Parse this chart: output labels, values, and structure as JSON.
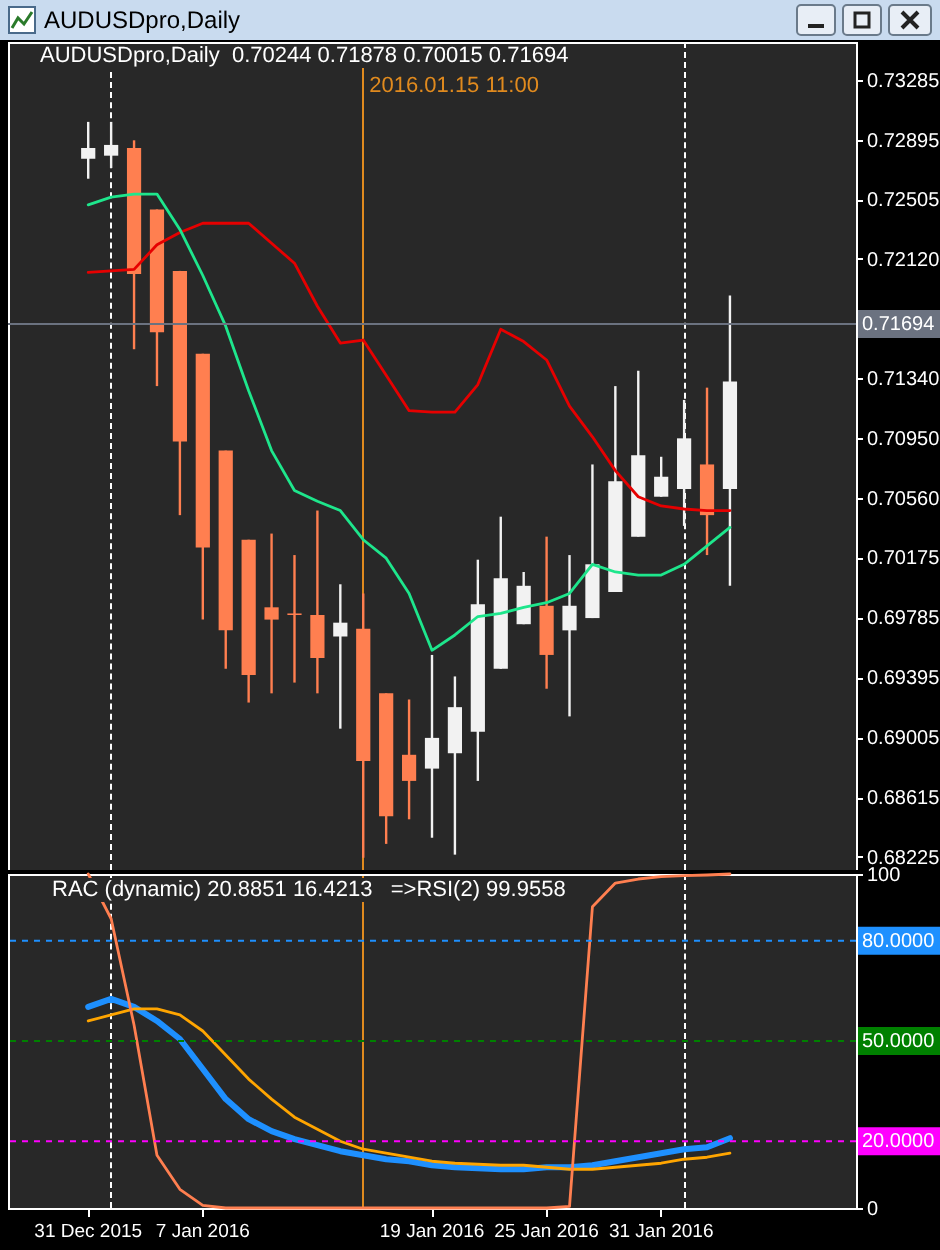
{
  "chart_data": [
    {
      "type": "candlestick",
      "title": "AUDUSDpro,Daily",
      "subtitle": "AUDUSDpro,Daily  0.70244 0.71878 0.70015 0.71694",
      "categories": [
        null,
        null,
        null,
        null,
        null,
        null,
        null,
        null,
        null,
        null,
        null,
        null,
        null,
        null,
        null,
        null,
        null,
        null,
        null,
        null,
        null,
        null,
        null,
        null,
        null,
        null,
        null,
        null,
        null
      ],
      "ohlc": [
        [
          0.7277,
          0.7301,
          0.7264,
          0.7284
        ],
        [
          0.7279,
          0.7301,
          0.7271,
          0.7286
        ],
        [
          0.7284,
          0.7289,
          0.7153,
          0.7202
        ],
        [
          0.7244,
          0.7244,
          0.7129,
          0.7164
        ],
        [
          0.7204,
          0.7204,
          0.7045,
          0.7093
        ],
        [
          0.715,
          0.715,
          0.6977,
          0.7024
        ],
        [
          0.7087,
          0.7087,
          0.6945,
          0.697
        ],
        [
          0.7029,
          0.7029,
          0.6923,
          0.6941
        ],
        [
          0.6985,
          0.7033,
          0.6929,
          0.6977
        ],
        [
          0.6981,
          0.7019,
          0.6936,
          0.698
        ],
        [
          0.698,
          0.7048,
          0.6929,
          0.6952
        ],
        [
          0.6966,
          0.7,
          0.6906,
          0.6975
        ],
        [
          0.6971,
          0.6994,
          0.6822,
          0.6885
        ],
        [
          0.6929,
          0.6929,
          0.6831,
          0.6849
        ],
        [
          0.6889,
          0.6925,
          0.6847,
          0.6872
        ],
        [
          0.688,
          0.6954,
          0.6835,
          0.69
        ],
        [
          0.689,
          0.694,
          0.6824,
          0.692
        ],
        [
          0.6904,
          0.7016,
          0.6872,
          0.6987
        ],
        [
          0.6945,
          0.7044,
          0.6945,
          0.7004
        ],
        [
          0.6974,
          0.7008,
          0.6974,
          0.6999
        ],
        [
          0.6986,
          0.7031,
          0.6932,
          0.6954
        ],
        [
          0.697,
          0.7019,
          0.6914,
          0.6986
        ],
        [
          0.6978,
          0.7078,
          0.6978,
          0.7013
        ],
        [
          0.6995,
          0.7129,
          0.6995,
          0.7067
        ],
        [
          0.7031,
          0.7139,
          0.7031,
          0.7084
        ],
        [
          0.7057,
          0.7083,
          0.7057,
          0.707
        ],
        [
          0.7062,
          0.712,
          0.7038,
          0.7095
        ],
        [
          0.7078,
          0.7128,
          0.7019,
          0.7045
        ],
        [
          0.7062,
          0.7188,
          0.6999,
          0.7132
        ]
      ],
      "colors": [
        "#f2f2f2",
        "#f2f2f2",
        "#ff7f50",
        "#ff7f50",
        "#ff7f50",
        "#ff7f50",
        "#ff7f50",
        "#ff7f50",
        "#ff7f50",
        "#ff7f50",
        "#ff7f50",
        "#f2f2f2",
        "#ff7f50",
        "#ff7f50",
        "#ff7f50",
        "#f2f2f2",
        "#f2f2f2",
        "#f2f2f2",
        "#f2f2f2",
        "#f2f2f2",
        "#ff7f50",
        "#f2f2f2",
        "#f2f2f2",
        "#f2f2f2",
        "#f2f2f2",
        "#f2f2f2",
        "#f2f2f2",
        "#ff7f50",
        "#f2f2f2"
      ],
      "series": [
        {
          "type": "line",
          "color": "#e60000",
          "values": [
            0.7203,
            0.7204,
            0.7205,
            0.7221,
            0.7229,
            0.7235,
            0.7235,
            0.7235,
            0.7222,
            0.7209,
            0.7181,
            0.7157,
            0.7159,
            0.7136,
            0.7113,
            0.7112,
            0.7112,
            0.713,
            0.7166,
            0.7158,
            0.7146,
            0.7116,
            0.7096,
            0.7074,
            0.7057,
            0.7051,
            0.7049,
            0.7048,
            0.7048
          ]
        },
        {
          "type": "line",
          "color": "#1ee68c",
          "values": [
            0.7247,
            0.7252,
            0.7254,
            0.7254,
            0.7231,
            0.7201,
            0.7168,
            0.7126,
            0.7087,
            0.7061,
            0.7054,
            0.7048,
            0.7029,
            0.7017,
            0.6994,
            0.6957,
            0.6967,
            0.6979,
            0.6981,
            0.6985,
            0.6988,
            0.6994,
            0.7013,
            0.7008,
            0.7006,
            0.7006,
            0.7013,
            0.7025,
            0.7037
          ]
        }
      ],
      "ylim": [
        0.6814,
        0.7353
      ],
      "yticks": [
        0.73285,
        0.72895,
        0.72505,
        {
          "value": 0.7212,
          "label": "0.72120"
        },
        {
          "value": 0.7134,
          "label": "0.71340"
        },
        {
          "value": 0.7095,
          "label": "0.70950"
        },
        {
          "value": 0.7056,
          "label": "0.70560"
        },
        0.70175,
        0.69785,
        0.69395,
        0.69005,
        0.68615,
        0.68225
      ],
      "tick_labels": "y",
      "ref_lines": [
        {
          "axis": "y",
          "value": 0.71694,
          "label": "0.71694",
          "color": "#6b7280"
        }
      ],
      "annotations": [
        "2016.01.15 11:00"
      ]
    },
    {
      "type": "line",
      "title": "RAC (dynamic) 20.8851 16.4213   =>RSI(2) 99.9558",
      "categories": [
        "31 Dec 2015",
        null,
        null,
        null,
        null,
        "7 Jan 2016",
        null,
        null,
        null,
        null,
        null,
        null,
        null,
        null,
        null,
        "19 Jan 2016",
        null,
        null,
        null,
        null,
        "25 Jan 2016",
        null,
        null,
        null,
        null,
        "31 Jan 2016",
        null,
        null,
        null
      ],
      "series": [
        {
          "color": "#1e90ff",
          "values": [
            60.2,
            62.6,
            60.2,
            56.0,
            50.6,
            41.6,
            32.6,
            26.6,
            23.0,
            20.6,
            18.8,
            17.0,
            15.8,
            14.6,
            14.0,
            12.8,
            12.2,
            11.9,
            11.6,
            11.6,
            12.2,
            12.2,
            12.8,
            14.0,
            15.2,
            16.4,
            17.6,
            18.2,
            20.9
          ]
        },
        {
          "color": "#ffa500",
          "values": [
            56.0,
            57.8,
            59.6,
            59.6,
            57.8,
            53.0,
            45.8,
            38.6,
            32.6,
            27.2,
            23.6,
            20.0,
            17.6,
            16.4,
            15.2,
            14.0,
            13.4,
            13.1,
            12.8,
            12.8,
            12.2,
            11.6,
            11.6,
            12.2,
            12.8,
            13.4,
            14.6,
            15.2,
            16.4
          ]
        },
        {
          "color": "#ff7f50",
          "values": [
            100,
            86.6,
            54.8,
            15.8,
            5.6,
            0.8,
            0,
            0,
            0,
            0,
            0,
            0,
            0,
            0,
            0,
            0,
            0,
            0,
            0,
            0,
            0,
            0.5,
            90.2,
            97.3,
            98.5,
            99.2,
            99.5,
            99.7,
            100
          ]
        }
      ],
      "ylim": [
        0,
        100
      ],
      "yticks": [
        0,
        100
      ],
      "ref_lines": [
        {
          "axis": "y",
          "value": 80,
          "label": "80.0000",
          "color": "#1e90ff",
          "line_style": "dashed"
        },
        {
          "axis": "y",
          "value": 50,
          "label": "50.0000",
          "color": "#008000",
          "line_style": "dashed"
        },
        {
          "axis": "y",
          "value": 20,
          "label": "20.0000",
          "color": "#ff00ff",
          "line_style": "dashed"
        }
      ]
    }
  ]
}
